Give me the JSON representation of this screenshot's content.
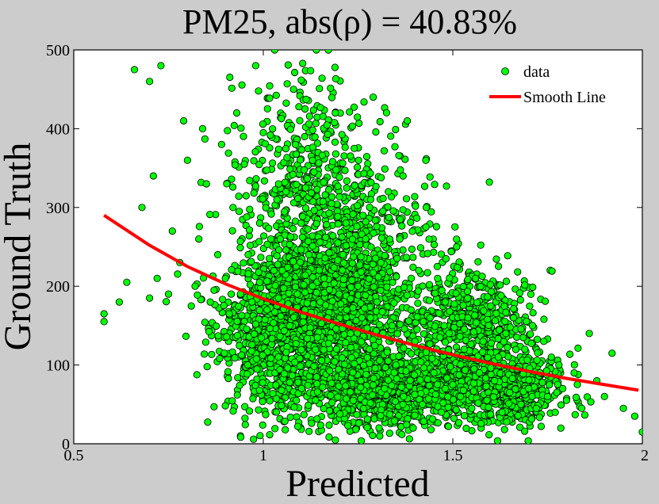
{
  "colors": {
    "figure_background": "#cccccc",
    "plot_background": "#ffffff",
    "point_fill": "#00ff00",
    "point_edge": "#000000",
    "line": "#ff0000"
  },
  "chart_data": {
    "type": "scatter",
    "title": "PM25, abs(ρ) = 40.83%",
    "xlabel": "Predicted",
    "ylabel": "Ground Truth",
    "xlim": [
      0.5,
      2
    ],
    "ylim": [
      0,
      500
    ],
    "xticks": [
      0.5,
      1,
      1.5,
      2
    ],
    "yticks": [
      0,
      100,
      200,
      300,
      400,
      500
    ],
    "xtick_labels": [
      "0.5",
      "1",
      "1.5",
      "2"
    ],
    "ytick_labels": [
      "0",
      "100",
      "200",
      "300",
      "400",
      "500"
    ],
    "grid": false,
    "legend": {
      "placement": "top-right",
      "entries": [
        {
          "label": "data",
          "marker": "circle"
        },
        {
          "label": "Smooth Line",
          "marker": "line"
        }
      ]
    },
    "smooth_line": {
      "name": "Smooth Line",
      "x": [
        0.58,
        0.7,
        0.8,
        0.9,
        1.0,
        1.1,
        1.2,
        1.3,
        1.4,
        1.5,
        1.6,
        1.7,
        1.8,
        1.9,
        1.99
      ],
      "y": [
        290,
        252,
        225,
        203,
        184,
        167,
        152,
        138,
        125,
        113,
        102,
        92,
        83,
        75,
        68
      ]
    },
    "scatter_series": {
      "name": "data",
      "x": [
        0.58,
        0.58,
        0.62,
        0.64,
        0.66,
        0.68,
        0.7,
        0.7,
        0.71,
        0.72,
        0.73,
        0.75,
        0.76,
        0.78,
        0.79,
        0.8,
        0.81,
        0.82,
        0.83,
        0.84,
        0.85,
        0.86,
        0.87,
        0.88,
        0.89,
        0.9,
        0.91,
        0.92,
        0.93,
        0.94,
        0.95,
        0.96,
        0.97,
        0.98,
        0.99,
        1.0,
        1.01,
        1.02,
        1.03,
        1.04,
        1.05,
        1.06,
        1.07,
        1.08,
        1.09,
        1.1,
        1.11,
        1.12,
        1.13,
        1.14,
        1.15,
        1.16,
        1.17,
        1.18,
        1.19,
        1.2,
        1.21,
        1.22,
        1.23,
        1.24,
        1.25,
        1.26,
        1.27,
        1.28,
        1.29,
        1.3,
        1.31,
        1.32,
        1.33,
        1.34,
        1.35,
        1.36,
        1.37,
        1.38,
        1.39,
        1.4,
        1.41,
        1.42,
        1.43,
        1.44,
        1.45,
        1.46,
        1.47,
        1.48,
        1.49,
        1.5,
        1.51,
        1.52,
        1.53,
        1.54,
        1.55,
        1.56,
        1.57,
        1.58,
        1.59,
        1.6,
        1.61,
        1.62,
        1.63,
        1.64,
        1.65,
        1.66,
        1.67,
        1.68,
        1.69,
        1.7,
        1.71,
        1.72,
        1.73,
        1.74,
        1.75,
        1.76,
        1.77,
        1.78,
        1.79,
        1.8,
        1.82,
        1.84,
        1.86,
        1.88,
        1.9,
        1.92,
        1.95,
        1.98,
        2.0
      ],
      "y": [
        155,
        165,
        180,
        205,
        475,
        300,
        460,
        185,
        340,
        210,
        480,
        190,
        270,
        230,
        410,
        360,
        175,
        200,
        260,
        400,
        330,
        180,
        195,
        240,
        380,
        210,
        165,
        300,
        420,
        190,
        355,
        240,
        180,
        480,
        205,
        395,
        170,
        260,
        500,
        185,
        220,
        320,
        150,
        450,
        190,
        280,
        170,
        240,
        360,
        500,
        180,
        210,
        160,
        305,
        420,
        190,
        240,
        170,
        140,
        375,
        200,
        160,
        260,
        120,
        440,
        180,
        230,
        70,
        320,
        150,
        100,
        260,
        60,
        410,
        170,
        130,
        220,
        50,
        300,
        160,
        90,
        210,
        40,
        180,
        140,
        75,
        250,
        60,
        120,
        160,
        45,
        210,
        90,
        130,
        55,
        175,
        80,
        110,
        40,
        140,
        65,
        160,
        95,
        50,
        120,
        70,
        150,
        45,
        90,
        130,
        60,
        110,
        40,
        100,
        70,
        55,
        90,
        45,
        140,
        80,
        60,
        115,
        45,
        35,
        15
      ]
    },
    "scatter_density": {
      "description_points": "dense cluster of approximately 5000 green circles",
      "clusters": [
        {
          "x_center": 1.15,
          "y_center": 175,
          "x_spread": 0.18,
          "y_spread": 35,
          "count": 1300
        },
        {
          "x_center": 1.35,
          "y_center": 70,
          "x_spread": 0.2,
          "y_spread": 25,
          "count": 1100
        },
        {
          "x_center": 1.2,
          "y_center": 260,
          "x_spread": 0.2,
          "y_spread": 60,
          "count": 700
        },
        {
          "x_center": 1.05,
          "y_center": 120,
          "x_spread": 0.14,
          "y_spread": 45,
          "count": 600
        },
        {
          "x_center": 1.55,
          "y_center": 150,
          "x_spread": 0.14,
          "y_spread": 35,
          "count": 500
        },
        {
          "x_center": 1.65,
          "y_center": 70,
          "x_spread": 0.12,
          "y_spread": 25,
          "count": 450
        },
        {
          "x_center": 1.1,
          "y_center": 360,
          "x_spread": 0.15,
          "y_spread": 60,
          "count": 250
        }
      ]
    }
  }
}
